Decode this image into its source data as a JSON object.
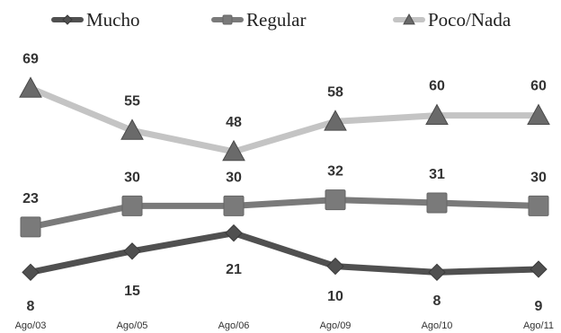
{
  "chart_data": {
    "type": "line",
    "title": "",
    "xlabel": "",
    "ylabel": "",
    "categories": [
      "Ago/03",
      "Ago/05",
      "Ago/06",
      "Ago/09",
      "Ago/10",
      "Ago/11"
    ],
    "ylim": [
      0,
      75
    ],
    "grid": false,
    "legend_position": "top",
    "series": [
      {
        "name": "Mucho",
        "values": [
          8,
          15,
          21,
          10,
          8,
          9
        ],
        "color": "#505050",
        "marker": "diamond"
      },
      {
        "name": "Regular",
        "values": [
          23,
          30,
          30,
          32,
          31,
          30
        ],
        "color": "#7a7a7a",
        "marker": "square"
      },
      {
        "name": "Poco/Nada",
        "values": [
          69,
          55,
          48,
          58,
          60,
          60
        ],
        "color": "#c4c4c4",
        "marker": "triangle"
      }
    ]
  }
}
